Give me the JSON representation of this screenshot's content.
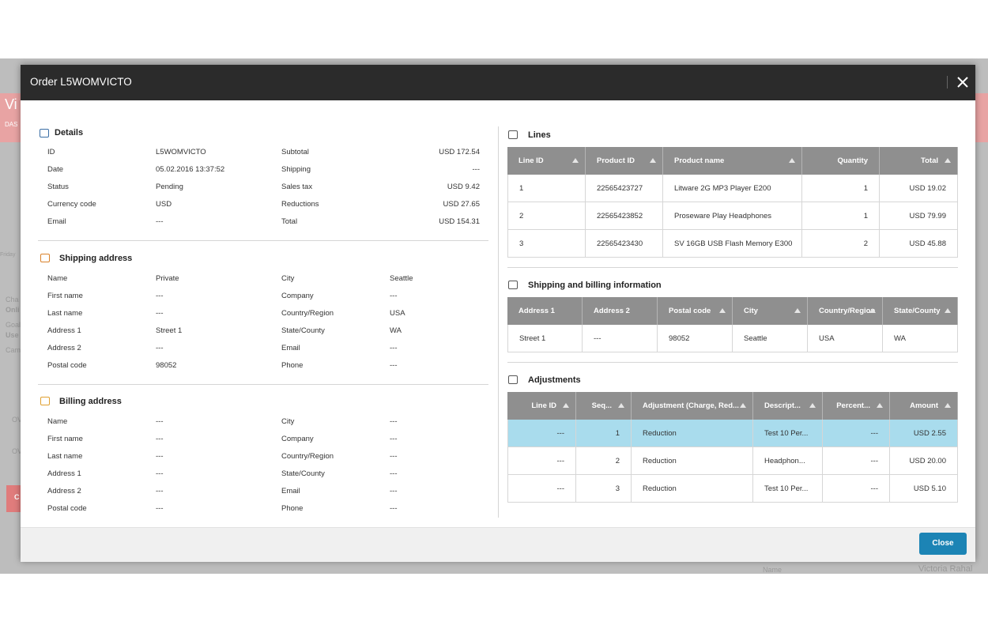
{
  "background": {
    "texts": [
      "Vi",
      "DAS",
      "Friday",
      "Cha",
      "Onli",
      "Goal",
      "Use",
      "Cam",
      "OV",
      "OV",
      "C",
      "Name",
      "Victoria Rahal"
    ]
  },
  "dialog": {
    "title": "Order L5WOMVICTO",
    "close_button": "Close"
  },
  "details": {
    "title": "Details",
    "rows": [
      [
        "ID",
        "L5WOMVICTO",
        "Subtotal",
        "USD 172.54"
      ],
      [
        "Date",
        "05.02.2016 13:37:52",
        "Shipping",
        "---"
      ],
      [
        "Status",
        "Pending",
        "Sales tax",
        "USD 9.42"
      ],
      [
        "Currency code",
        "USD",
        "Reductions",
        "USD 27.65"
      ],
      [
        "Email",
        "---",
        "Total",
        "USD 154.31"
      ]
    ]
  },
  "shipping_address": {
    "title": "Shipping address",
    "rows": [
      [
        "Name",
        "Private",
        "City",
        "Seattle"
      ],
      [
        "First name",
        "---",
        "Company",
        "---"
      ],
      [
        "Last name",
        "---",
        "Country/Region",
        "USA"
      ],
      [
        "Address 1",
        "Street 1",
        "State/County",
        "WA"
      ],
      [
        "Address 2",
        "---",
        "Email",
        "---"
      ],
      [
        "Postal code",
        "98052",
        "Phone",
        "---"
      ]
    ]
  },
  "billing_address": {
    "title": "Billing address",
    "rows": [
      [
        "Name",
        "---",
        "City",
        "---"
      ],
      [
        "First name",
        "---",
        "Company",
        "---"
      ],
      [
        "Last name",
        "---",
        "Country/Region",
        "---"
      ],
      [
        "Address 1",
        "---",
        "State/County",
        "---"
      ],
      [
        "Address 2",
        "---",
        "Email",
        "---"
      ],
      [
        "Postal code",
        "---",
        "Phone",
        "---"
      ]
    ]
  },
  "lines": {
    "title": "Lines",
    "columns": [
      "Line ID",
      "Product ID",
      "Product name",
      "Quantity",
      "Total"
    ],
    "rows": [
      [
        "1",
        "22565423727",
        "Litware 2G MP3 Player E200",
        "1",
        "USD 19.02"
      ],
      [
        "2",
        "22565423852",
        "Proseware Play Headphones",
        "1",
        "USD 79.99"
      ],
      [
        "3",
        "22565423430",
        "SV 16GB USB Flash Memory E300",
        "2",
        "USD 45.88"
      ]
    ]
  },
  "shipping_billing": {
    "title": "Shipping and billing information",
    "columns": [
      "Address 1",
      "Address 2",
      "Postal code",
      "City",
      "Country/Region",
      "State/County"
    ],
    "rows": [
      [
        "Street 1",
        "---",
        "98052",
        "Seattle",
        "USA",
        "WA"
      ]
    ]
  },
  "adjustments": {
    "title": "Adjustments",
    "columns": [
      "Line ID",
      "Seq...",
      "Adjustment (Charge, Red...",
      "Descript...",
      "Percent...",
      "Amount"
    ],
    "rows": [
      [
        "---",
        "1",
        "Reduction",
        "Test 10 Per...",
        "---",
        "USD 2.55"
      ],
      [
        "---",
        "2",
        "Reduction",
        "Headphon...",
        "---",
        "USD 20.00"
      ],
      [
        "---",
        "3",
        "Reduction",
        "Test 10 Per...",
        "---",
        "USD 5.10"
      ]
    ]
  }
}
